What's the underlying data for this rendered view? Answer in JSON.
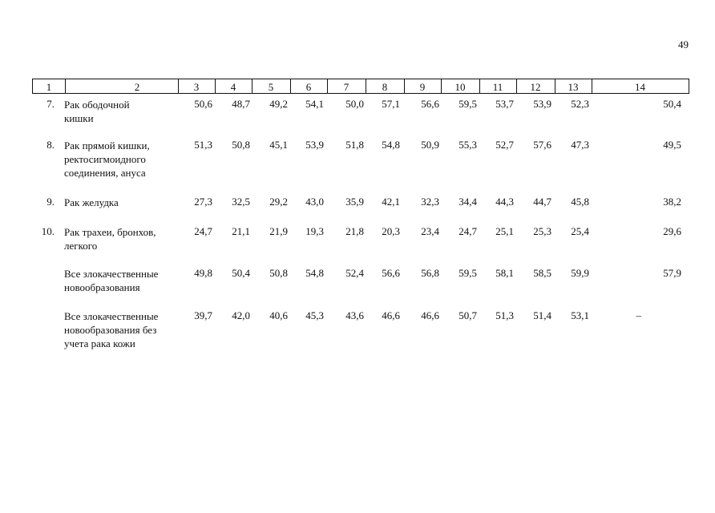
{
  "page_number": "49",
  "header": [
    "1",
    "2",
    "3",
    "4",
    "5",
    "6",
    "7",
    "8",
    "9",
    "10",
    "11",
    "12",
    "13",
    "14"
  ],
  "rows": [
    {
      "num": "7.",
      "name_lines": [
        "Рак ободочной",
        "кишки"
      ],
      "values": [
        "50,6",
        "48,7",
        "49,2",
        "54,1",
        "50,0",
        "57,1",
        "56,6",
        "59,5",
        "53,7",
        "53,9",
        "52,3",
        "50,4"
      ]
    },
    {
      "num": "8.",
      "name_lines": [
        "Рак прямой кишки,",
        "ректосигмоидного",
        "соединения, ануса"
      ],
      "values": [
        "51,3",
        "50,8",
        "45,1",
        "53,9",
        "51,8",
        "54,8",
        "50,9",
        "55,3",
        "52,7",
        "57,6",
        "47,3",
        "49,5"
      ]
    },
    {
      "num": "9.",
      "name_lines": [
        "Рак желудка"
      ],
      "values": [
        "27,3",
        "32,5",
        "29,2",
        "43,0",
        "35,9",
        "42,1",
        "32,3",
        "34,4",
        "44,3",
        "44,7",
        "45,8",
        "38,2"
      ]
    },
    {
      "num": "10.",
      "name_lines": [
        "Рак трахеи, бронхов,",
        "легкого"
      ],
      "values": [
        "24,7",
        "21,1",
        "21,9",
        "19,3",
        "21,8",
        "20,3",
        "23,4",
        "24,7",
        "25,1",
        "25,3",
        "25,4",
        "29,6"
      ]
    },
    {
      "num": "",
      "name_lines": [
        "Все злокачественные",
        "новообразования"
      ],
      "values": [
        "49,8",
        "50,4",
        "50,8",
        "54,8",
        "52,4",
        "56,6",
        "56,8",
        "59,5",
        "58,1",
        "58,5",
        "59,9",
        "57,9"
      ]
    },
    {
      "num": "",
      "name_lines": [
        "Все злокачественные",
        "новообразования без",
        "учета рака кожи"
      ],
      "values": [
        "39,7",
        "42,0",
        "40,6",
        "45,3",
        "43,6",
        "46,6",
        "46,6",
        "50,7",
        "51,3",
        "51,4",
        "53,1",
        "–"
      ]
    }
  ]
}
